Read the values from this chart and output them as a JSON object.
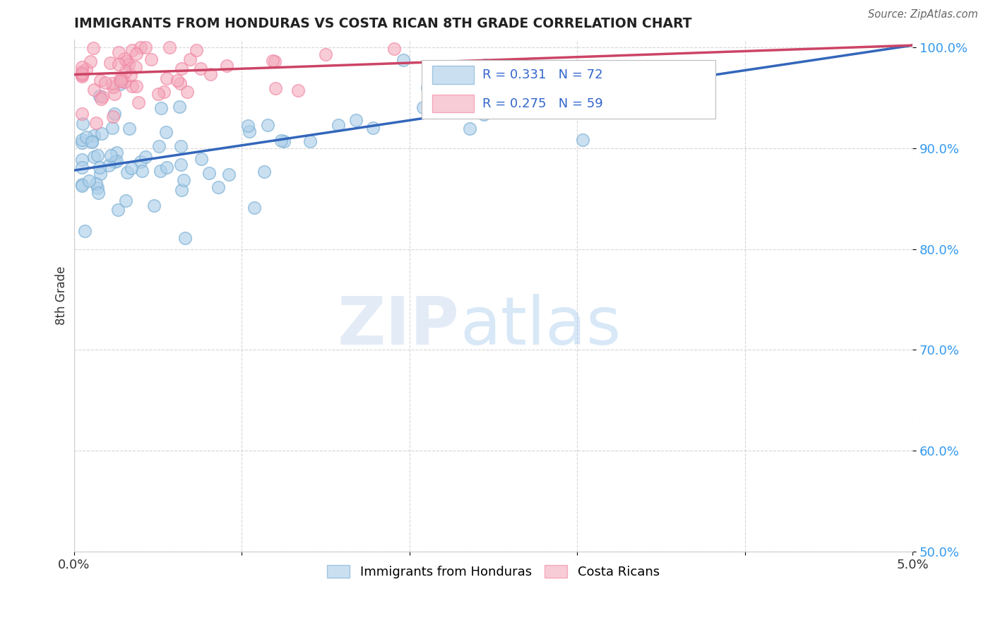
{
  "title": "IMMIGRANTS FROM HONDURAS VS COSTA RICAN 8TH GRADE CORRELATION CHART",
  "source": "Source: ZipAtlas.com",
  "ylabel": "8th Grade",
  "xmin": 0.0,
  "xmax": 0.05,
  "ymin": 0.5,
  "ymax": 1.008,
  "yticks": [
    0.5,
    0.6,
    0.7,
    0.8,
    0.9,
    1.0
  ],
  "ytick_labels": [
    "50.0%",
    "60.0%",
    "70.0%",
    "80.0%",
    "90.0%",
    "100.0%"
  ],
  "xtick_vals": [
    0.0,
    0.01,
    0.02,
    0.03,
    0.04,
    0.05
  ],
  "xtick_labels": [
    "0.0%",
    "",
    "",
    "",
    "",
    "5.0%"
  ],
  "blue_color": "#7BAFD4",
  "pink_color": "#F080A0",
  "blue_line_color": "#3366BB",
  "pink_line_color": "#CC4466",
  "blue_fill": "#AED0EA",
  "pink_fill": "#F4AABB",
  "R_blue": 0.331,
  "N_blue": 72,
  "R_pink": 0.275,
  "N_pink": 59,
  "legend_label_blue": "Immigrants from Honduras",
  "legend_label_pink": "Costa Ricans",
  "blue_line_x0": 0.0,
  "blue_line_y0": 0.878,
  "blue_line_x1": 0.05,
  "blue_line_y1": 1.002,
  "pink_line_x0": 0.0,
  "pink_line_y0": 0.973,
  "pink_line_x1": 0.05,
  "pink_line_y1": 1.002
}
